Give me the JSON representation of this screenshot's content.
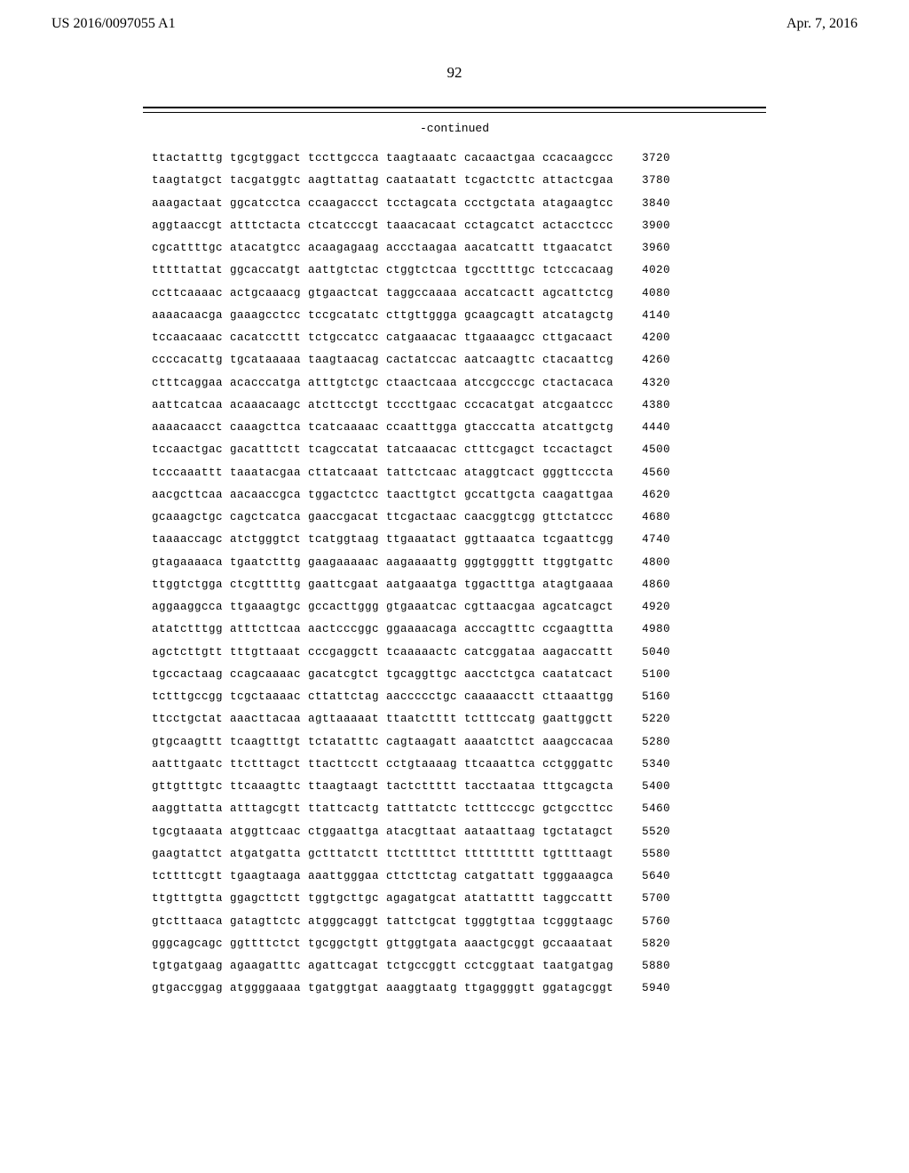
{
  "header": {
    "patent_number": "US 2016/0097055 A1",
    "date": "Apr. 7, 2016"
  },
  "page_number": "92",
  "continued_label": "-continued",
  "sequence": {
    "rows": [
      {
        "groups": [
          "ttactatttg",
          "tgcgtggact",
          "tccttgccca",
          "taagtaaatc",
          "cacaactgaa",
          "ccacaagccc"
        ],
        "pos": "3720"
      },
      {
        "groups": [
          "taagtatgct",
          "tacgatggtc",
          "aagttattag",
          "caataatatt",
          "tcgactcttc",
          "attactcgaa"
        ],
        "pos": "3780"
      },
      {
        "groups": [
          "aaagactaat",
          "ggcatcctca",
          "ccaagaccct",
          "tcctagcata",
          "ccctgctata",
          "atagaagtcc"
        ],
        "pos": "3840"
      },
      {
        "groups": [
          "aggtaaccgt",
          "atttctacta",
          "ctcatcccgt",
          "taaacacaat",
          "cctagcatct",
          "actacctccc"
        ],
        "pos": "3900"
      },
      {
        "groups": [
          "cgcattttgc",
          "atacatgtcc",
          "acaagagaag",
          "accctaagaa",
          "aacatcattt",
          "ttgaacatct"
        ],
        "pos": "3960"
      },
      {
        "groups": [
          "tttttattat",
          "ggcaccatgt",
          "aattgtctac",
          "ctggtctcaa",
          "tgccttttgc",
          "tctccacaag"
        ],
        "pos": "4020"
      },
      {
        "groups": [
          "ccttcaaaac",
          "actgcaaacg",
          "gtgaactcat",
          "taggccaaaa",
          "accatcactt",
          "agcattctcg"
        ],
        "pos": "4080"
      },
      {
        "groups": [
          "aaaacaacga",
          "gaaagcctcc",
          "tccgcatatc",
          "cttgttggga",
          "gcaagcagtt",
          "atcatagctg"
        ],
        "pos": "4140"
      },
      {
        "groups": [
          "tccaacaaac",
          "cacatccttt",
          "tctgccatcc",
          "catgaaacac",
          "ttgaaaagcc",
          "cttgacaact"
        ],
        "pos": "4200"
      },
      {
        "groups": [
          "ccccacattg",
          "tgcataaaaa",
          "taagtaacag",
          "cactatccac",
          "aatcaagttc",
          "ctacaattcg"
        ],
        "pos": "4260"
      },
      {
        "groups": [
          "ctttcaggaa",
          "acacccatga",
          "atttgtctgc",
          "ctaactcaaa",
          "atccgcccgc",
          "ctactacaca"
        ],
        "pos": "4320"
      },
      {
        "groups": [
          "aattcatcaa",
          "acaaacaagc",
          "atcttcctgt",
          "tcccttgaac",
          "cccacatgat",
          "atcgaatccc"
        ],
        "pos": "4380"
      },
      {
        "groups": [
          "aaaacaacct",
          "caaagcttca",
          "tcatcaaaac",
          "ccaatttgga",
          "gtacccatta",
          "atcattgctg"
        ],
        "pos": "4440"
      },
      {
        "groups": [
          "tccaactgac",
          "gacatttctt",
          "tcagccatat",
          "tatcaaacac",
          "ctttcgagct",
          "tccactagct"
        ],
        "pos": "4500"
      },
      {
        "groups": [
          "tcccaaattt",
          "taaatacgaa",
          "cttatcaaat",
          "tattctcaac",
          "ataggtcact",
          "gggttcccta"
        ],
        "pos": "4560"
      },
      {
        "groups": [
          "aacgcttcaa",
          "aacaaccgca",
          "tggactctcc",
          "taacttgtct",
          "gccattgcta",
          "caagattgaa"
        ],
        "pos": "4620"
      },
      {
        "groups": [
          "gcaaagctgc",
          "cagctcatca",
          "gaaccgacat",
          "ttcgactaac",
          "caacggtcgg",
          "gttctatccc"
        ],
        "pos": "4680"
      },
      {
        "groups": [
          "taaaaccagc",
          "atctgggtct",
          "tcatggtaag",
          "ttgaaatact",
          "ggttaaatca",
          "tcgaattcgg"
        ],
        "pos": "4740"
      },
      {
        "groups": [
          "gtagaaaaca",
          "tgaatctttg",
          "gaagaaaaac",
          "aagaaaattg",
          "gggtgggttt",
          "ttggtgattc"
        ],
        "pos": "4800"
      },
      {
        "groups": [
          "ttggtctgga",
          "ctcgtttttg",
          "gaattcgaat",
          "aatgaaatga",
          "tggactttga",
          "atagtgaaaa"
        ],
        "pos": "4860"
      },
      {
        "groups": [
          "aggaaggcca",
          "ttgaaagtgc",
          "gccacttggg",
          "gtgaaatcac",
          "cgttaacgaa",
          "agcatcagct"
        ],
        "pos": "4920"
      },
      {
        "groups": [
          "atatctttgg",
          "atttcttcaa",
          "aactcccggc",
          "ggaaaacaga",
          "acccagtttc",
          "ccgaagttta"
        ],
        "pos": "4980"
      },
      {
        "groups": [
          "agctcttgtt",
          "tttgttaaat",
          "cccgaggctt",
          "tcaaaaactc",
          "catcggataa",
          "aagaccattt"
        ],
        "pos": "5040"
      },
      {
        "groups": [
          "tgccactaag",
          "ccagcaaaac",
          "gacatcgtct",
          "tgcaggttgc",
          "aacctctgca",
          "caatatcact"
        ],
        "pos": "5100"
      },
      {
        "groups": [
          "tctttgccgg",
          "tcgctaaaac",
          "cttattctag",
          "aaccccctgc",
          "caaaaacctt",
          "cttaaattgg"
        ],
        "pos": "5160"
      },
      {
        "groups": [
          "ttcctgctat",
          "aaacttacaa",
          "agttaaaaat",
          "ttaatctttt",
          "tctttccatg",
          "gaattggctt"
        ],
        "pos": "5220"
      },
      {
        "groups": [
          "gtgcaagttt",
          "tcaagtttgt",
          "tctatatttc",
          "cagtaagatt",
          "aaaatcttct",
          "aaagccacaa"
        ],
        "pos": "5280"
      },
      {
        "groups": [
          "aatttgaatc",
          "ttctttagct",
          "ttacttcctt",
          "cctgtaaaag",
          "ttcaaattca",
          "cctgggattc"
        ],
        "pos": "5340"
      },
      {
        "groups": [
          "gttgtttgtc",
          "ttcaaagttc",
          "ttaagtaagt",
          "tactcttttt",
          "tacctaataa",
          "tttgcagcta"
        ],
        "pos": "5400"
      },
      {
        "groups": [
          "aaggttatta",
          "atttagcgtt",
          "ttattcactg",
          "tatttatctc",
          "tctttcccgc",
          "gctgccttcc"
        ],
        "pos": "5460"
      },
      {
        "groups": [
          "tgcgtaaata",
          "atggttcaac",
          "ctggaattga",
          "atacgttaat",
          "aataattaag",
          "tgctatagct"
        ],
        "pos": "5520"
      },
      {
        "groups": [
          "gaagtattct",
          "atgatgatta",
          "gctttatctt",
          "ttctttttct",
          "tttttttttt",
          "tgttttaagt"
        ],
        "pos": "5580"
      },
      {
        "groups": [
          "tcttttcgtt",
          "tgaagtaaga",
          "aaattgggaa",
          "cttcttctag",
          "catgattatt",
          "tgggaaagca"
        ],
        "pos": "5640"
      },
      {
        "groups": [
          "ttgtttgtta",
          "ggagcttctt",
          "tggtgcttgc",
          "agagatgcat",
          "atattatttt",
          "taggccattt"
        ],
        "pos": "5700"
      },
      {
        "groups": [
          "gtctttaaca",
          "gatagttctc",
          "atgggcaggt",
          "tattctgcat",
          "tgggtgttaa",
          "tcgggtaagc"
        ],
        "pos": "5760"
      },
      {
        "groups": [
          "gggcagcagc",
          "ggttttctct",
          "tgcggctgtt",
          "gttggtgata",
          "aaactgcggt",
          "gccaaataat"
        ],
        "pos": "5820"
      },
      {
        "groups": [
          "tgtgatgaag",
          "agaagatttc",
          "agattcagat",
          "tctgccggtt",
          "cctcggtaat",
          "taatgatgag"
        ],
        "pos": "5880"
      },
      {
        "groups": [
          "gtgaccggag",
          "atggggaaaa",
          "tgatggtgat",
          "aaaggtaatg",
          "ttgaggggtt",
          "ggatagcggt"
        ],
        "pos": "5940"
      }
    ]
  }
}
